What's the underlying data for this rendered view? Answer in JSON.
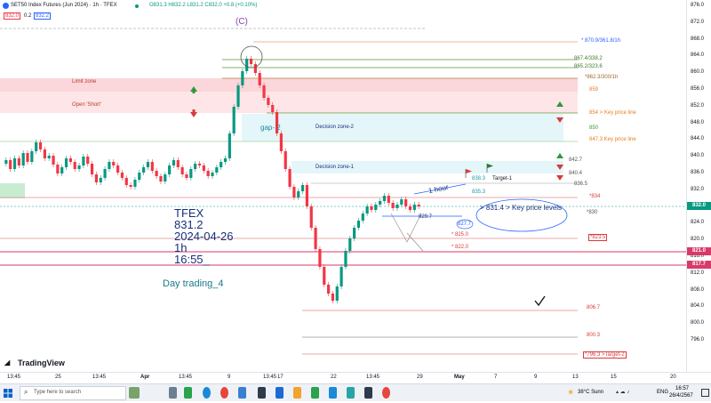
{
  "header": {
    "symbol": "SET50 Index Futures (Jun 2024) · 1h · TFEX",
    "ohlc": "O831.3 H832.2 L831.2 C832.0 +0.8 (+0.10%)",
    "bid": "832.0",
    "spread": "0.2",
    "ask": "832.2",
    "wave_label": "(C)"
  },
  "colors": {
    "up": "#089981",
    "down": "#f23645",
    "line": "#2962ff",
    "zone_red": "#fbd6da",
    "zone_cyan": "#e4f6fa"
  },
  "price_axis": {
    "ticks": [
      "876.0",
      "872.0",
      "868.0",
      "864.0",
      "860.0",
      "856.0",
      "852.0",
      "848.0",
      "844.0",
      "840.0",
      "836.0",
      "832.0",
      "828.0",
      "824.0",
      "820.0",
      "816.0",
      "812.0",
      "808.0",
      "804.0",
      "800.0",
      "796.0"
    ],
    "current_price": "832.0",
    "level_821": "821.0",
    "level_817": "817.7"
  },
  "time_axis": [
    "13:45",
    "25",
    "13:45",
    "Apr",
    "13:45",
    "9",
    "13:45",
    "17",
    "22",
    "13:45",
    "29",
    "May",
    "7",
    "9",
    "13",
    "15",
    "20"
  ],
  "annotations": {
    "limit_zone": "Limit zone",
    "open_short": "Open 'Short'",
    "gap": "gap- 2",
    "decision_zone_2": "Decision zone-2",
    "decision_zone_1": "Decision zone-1",
    "target_1": "Target-1",
    "one_hour": "1 hour",
    "key_price_levels": "> 831.4 > Key price levels",
    "lbl_870": "* 870.9/361.8/1h",
    "lbl_867": "867.4/338.2",
    "lbl_865": "865.2/323.6",
    "lbl_862": "*862.3/300/1h",
    "lbl_859": "859",
    "lbl_854": "854 > Key price line",
    "lbl_850": "850",
    "lbl_847": "847.3 Key price line",
    "lbl_842": "842.7",
    "lbl_840": "840.4",
    "lbl_836": "836.5",
    "lbl_834": "*834",
    "lbl_830": "*830",
    "lbl_823": "*823.5",
    "lbl_838": "838.3",
    "lbl_835": "835.3",
    "lbl_829": "829.7",
    "lbl_827": "827.7",
    "lbl_825": "* 825.0",
    "lbl_822": "* 822.0",
    "lbl_806": "806.7",
    "lbl_800": "800.3",
    "lbl_796": "*796.3 >Target-2"
  },
  "info_block": {
    "exchange": "TFEX",
    "price": "831.2",
    "date": "2024-04-26",
    "interval": "1h",
    "time": "16:55_",
    "strategy": "Day trading_4"
  },
  "branding": "TradingView",
  "taskbar": {
    "search_placeholder": "Type here to search",
    "weather": "38°C Sunn",
    "language": "ENG",
    "clock_time": "16:57",
    "clock_date": "26/4/2567"
  }
}
